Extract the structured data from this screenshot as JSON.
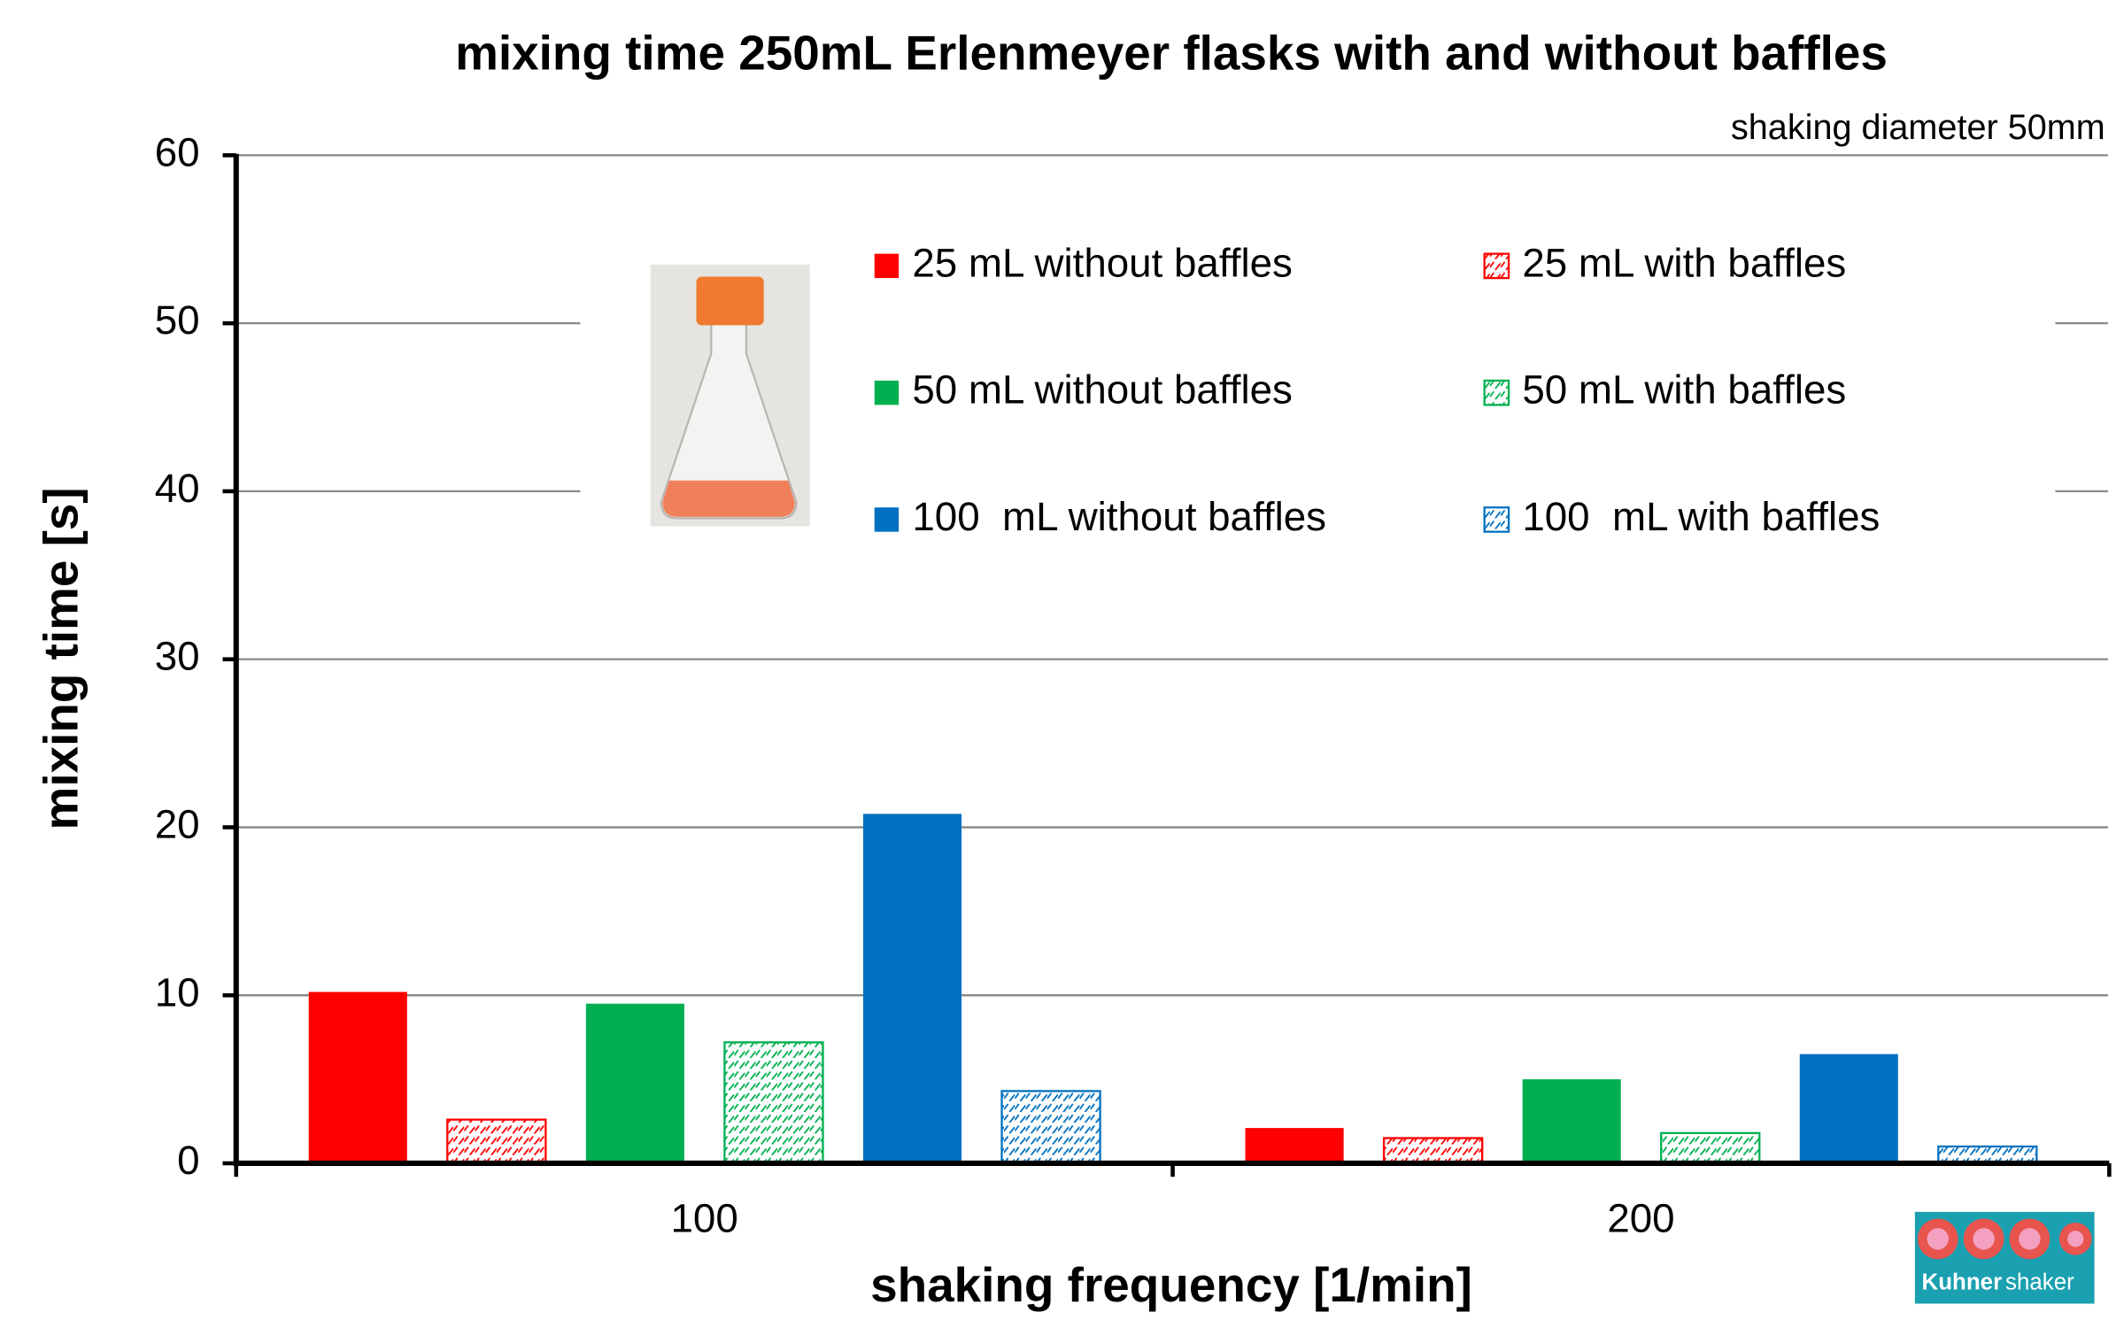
{
  "chart_data": {
    "type": "bar",
    "title": "mixing time 250mL Erlenmeyer flasks with and without baffles",
    "subtitle": "shaking diameter 50mm",
    "x_label": "shaking frequency  [1/min]",
    "y_label": "mixing time [s]",
    "categories": [
      "100",
      "200"
    ],
    "series": [
      {
        "name": "25 mL without baffles",
        "color": "#ff0000",
        "hatched": false,
        "values": [
          10.2,
          2.1
        ]
      },
      {
        "name": "25 mL with baffles",
        "color": "#ff0000",
        "hatched": true,
        "values": [
          2.6,
          1.5
        ]
      },
      {
        "name": "50 mL without baffles",
        "color": "#00b050",
        "hatched": false,
        "values": [
          9.5,
          5.0
        ]
      },
      {
        "name": "50 mL with baffles",
        "color": "#00b050",
        "hatched": true,
        "values": [
          7.2,
          1.8
        ]
      },
      {
        "name": "100  mL without baffles",
        "color": "#0070c0",
        "hatched": false,
        "values": [
          20.8,
          6.5
        ]
      },
      {
        "name": "100  mL with baffles",
        "color": "#0070c0",
        "hatched": true,
        "values": [
          4.3,
          1.0
        ]
      }
    ],
    "ylim": [
      0,
      60
    ],
    "yticks": [
      0,
      10,
      20,
      30,
      40,
      50,
      60
    ],
    "grid": true
  },
  "logo": {
    "brand": "Kuhner",
    "product": "shaker"
  }
}
